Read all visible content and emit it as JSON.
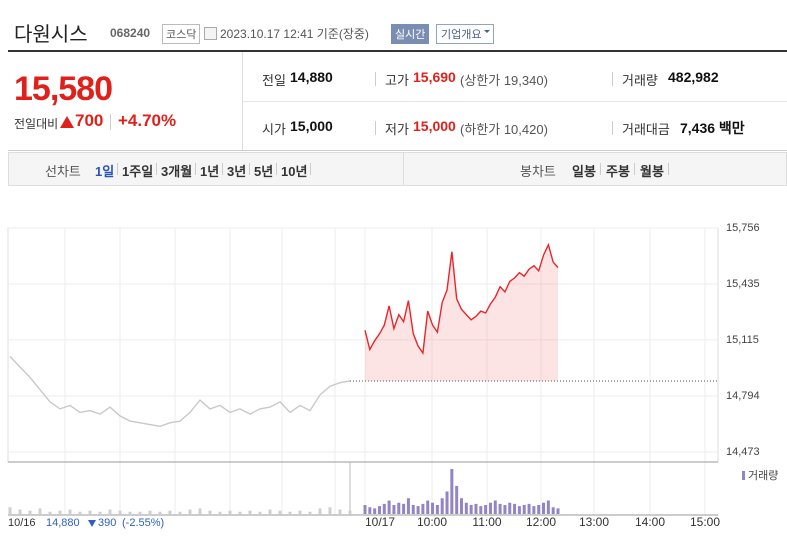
{
  "header": {
    "name": "다원시스",
    "code": "068240",
    "market": "코스닥",
    "timestamp": "2023.10.17 12:41 기준(장중)",
    "realtime": "실시간",
    "company_info": "기업개요"
  },
  "quote": {
    "price": "15,580",
    "change_label": "전일대비",
    "change": "700",
    "change_rate": "+4.70%"
  },
  "stats": [
    {
      "label": "전일",
      "value": "14,880"
    },
    {
      "label": "고가",
      "value": "15,690",
      "note": "(상한가 19,340)"
    },
    {
      "label": "거래량",
      "value": "482,982"
    },
    {
      "label": "시가",
      "value": "15,000"
    },
    {
      "label": "저가",
      "value": "15,000",
      "note": "(하한가 10,420)"
    },
    {
      "label": "거래대금",
      "value": "7,436 백만"
    }
  ],
  "tabs": {
    "line_label": "선차트",
    "line_periods": [
      "1일",
      "1주일",
      "3개월",
      "1년",
      "3년",
      "5년",
      "10년"
    ],
    "candle_label": "봉차트",
    "candle_periods": [
      "일봉",
      "주봉",
      "월봉"
    ]
  },
  "chart_data": {
    "type": "line",
    "series": [
      {
        "color": "#c8c8c8",
        "values": [
          15020,
          14960,
          14900,
          14830,
          14760,
          14720,
          14740,
          14700,
          14710,
          14690,
          14730,
          14680,
          14650,
          14640,
          14630,
          14620,
          14640,
          14650,
          14700,
          14770,
          14720,
          14740,
          14700,
          14720,
          14690,
          14720,
          14730,
          14760,
          14700,
          14740,
          14710,
          14800,
          14850,
          14870,
          14880
        ]
      },
      {
        "color": "#e8262a",
        "values": [
          15170,
          15060,
          15110,
          15150,
          15200,
          15310,
          15180,
          15260,
          15220,
          15340,
          15150,
          15080,
          15040,
          15280,
          15200,
          15160,
          15330,
          15400,
          15620,
          15350,
          15290,
          15260,
          15230,
          15250,
          15280,
          15270,
          15320,
          15360,
          15420,
          15390,
          15450,
          15470,
          15500,
          15480,
          15520,
          15540,
          15510,
          15600,
          15660,
          15560,
          15530
        ]
      }
    ],
    "base_value": 14880,
    "ylim": [
      14473,
      15756
    ],
    "yticks": [
      {
        "value": 15756,
        "label": "15,756"
      },
      {
        "value": 15435,
        "label": "15,435"
      },
      {
        "value": 15115,
        "label": "15,115"
      },
      {
        "value": 14794,
        "label": "14,794"
      },
      {
        "value": 14473,
        "label": "14,473"
      }
    ],
    "xticks": [
      "10/17",
      "10:00",
      "11:00",
      "12:00",
      "13:00",
      "14:00",
      "15:00"
    ],
    "volume_label": "거래량",
    "volume_series": [
      {
        "color": "#cfcfcf",
        "values": [
          6,
          4,
          3,
          5,
          2,
          3,
          4,
          2,
          3,
          2,
          4,
          3,
          2,
          2,
          3,
          2,
          3,
          2,
          4,
          5,
          3,
          2,
          3,
          2,
          3,
          2,
          4,
          3,
          2,
          3,
          2,
          5,
          6,
          4,
          3
        ]
      },
      {
        "color": "#9384c4",
        "values": [
          8,
          6,
          5,
          7,
          9,
          12,
          8,
          10,
          9,
          14,
          8,
          7,
          9,
          12,
          10,
          8,
          14,
          20,
          40,
          25,
          14,
          10,
          8,
          9,
          7,
          8,
          10,
          12,
          9,
          8,
          10,
          9,
          7,
          8,
          9,
          7,
          8,
          10,
          12,
          6,
          5
        ]
      }
    ],
    "footer": {
      "date": "10/16",
      "close": "14,880",
      "change": "390",
      "rate": "(-2.55%)"
    }
  }
}
